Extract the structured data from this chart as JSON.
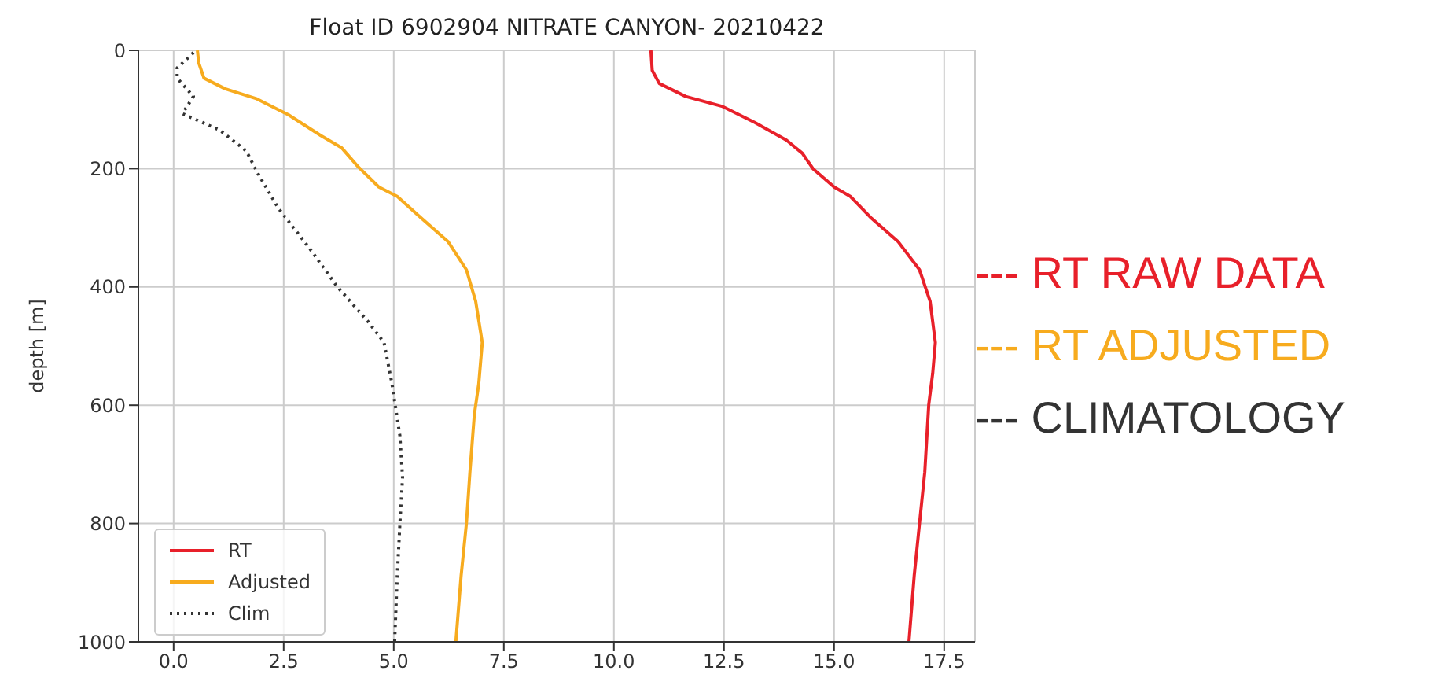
{
  "chart_data": {
    "type": "line",
    "title": "Float ID 6902904 NITRATE CANYON- 20210422",
    "ylabel": "depth [m]",
    "xlim": [
      -0.8,
      18.2
    ],
    "xticks": [
      {
        "value": 0,
        "label": "0.0"
      },
      {
        "value": 2.5,
        "label": "2.5"
      },
      {
        "value": 5,
        "label": "5.0"
      },
      {
        "value": 7.5,
        "label": "7.5"
      },
      {
        "value": 10,
        "label": "10.0"
      },
      {
        "value": 12.5,
        "label": "12.5"
      },
      {
        "value": 15,
        "label": "15.0"
      },
      {
        "value": 17.5,
        "label": "17.5"
      }
    ],
    "ylim": [
      1000,
      0
    ],
    "yticks": [
      0,
      200,
      400,
      600,
      800,
      1000
    ],
    "grid": true,
    "legend": "bottom left",
    "marker": "none",
    "series": [
      {
        "name": "RT",
        "color": "#e8202a",
        "line_style": "solid",
        "x": [
          10.84,
          10.87,
          11.03,
          11.63,
          12.47,
          13.2,
          13.92,
          14.28,
          14.52,
          15.0,
          15.37,
          15.85,
          16.45,
          16.94,
          17.18,
          17.3,
          17.24,
          17.15,
          17.06,
          16.94,
          16.82,
          16.7
        ],
        "values": [
          0,
          34,
          56,
          78,
          95,
          122,
          152,
          174,
          200,
          231,
          247,
          284,
          323,
          371,
          424,
          494,
          546,
          599,
          713,
          800,
          888,
          1000
        ]
      },
      {
        "name": "Adjusted",
        "color": "#f7ab1e",
        "line_style": "solid",
        "x": [
          0.54,
          0.57,
          0.69,
          1.17,
          1.89,
          2.61,
          3.34,
          3.82,
          4.18,
          4.66,
          5.08,
          5.63,
          6.23,
          6.65,
          6.86,
          7.01,
          6.93,
          6.83,
          6.73,
          6.65,
          6.53,
          6.41
        ],
        "values": [
          0,
          21,
          47,
          65,
          82,
          109,
          144,
          165,
          196,
          231,
          247,
          284,
          323,
          371,
          424,
          494,
          564,
          616,
          713,
          800,
          888,
          1000
        ]
      },
      {
        "name": "Clim",
        "color": "#333333",
        "line_style": "dotted",
        "x": [
          0.45,
          0.08,
          0.08,
          0.45,
          0.2,
          1.05,
          1.65,
          1.89,
          2.37,
          3.1,
          3.7,
          4.42,
          4.78,
          4.96,
          5.14,
          5.2,
          5.14,
          5.08,
          5.02
        ],
        "values": [
          4,
          30,
          47,
          78,
          107,
          135,
          170,
          205,
          266,
          336,
          398,
          459,
          494,
          564,
          652,
          722,
          800,
          888,
          1000
        ]
      }
    ],
    "annotations": [
      "--- RT RAW DATA",
      "--- RT ADJUSTED",
      "--- CLIMATOLOGY"
    ]
  }
}
